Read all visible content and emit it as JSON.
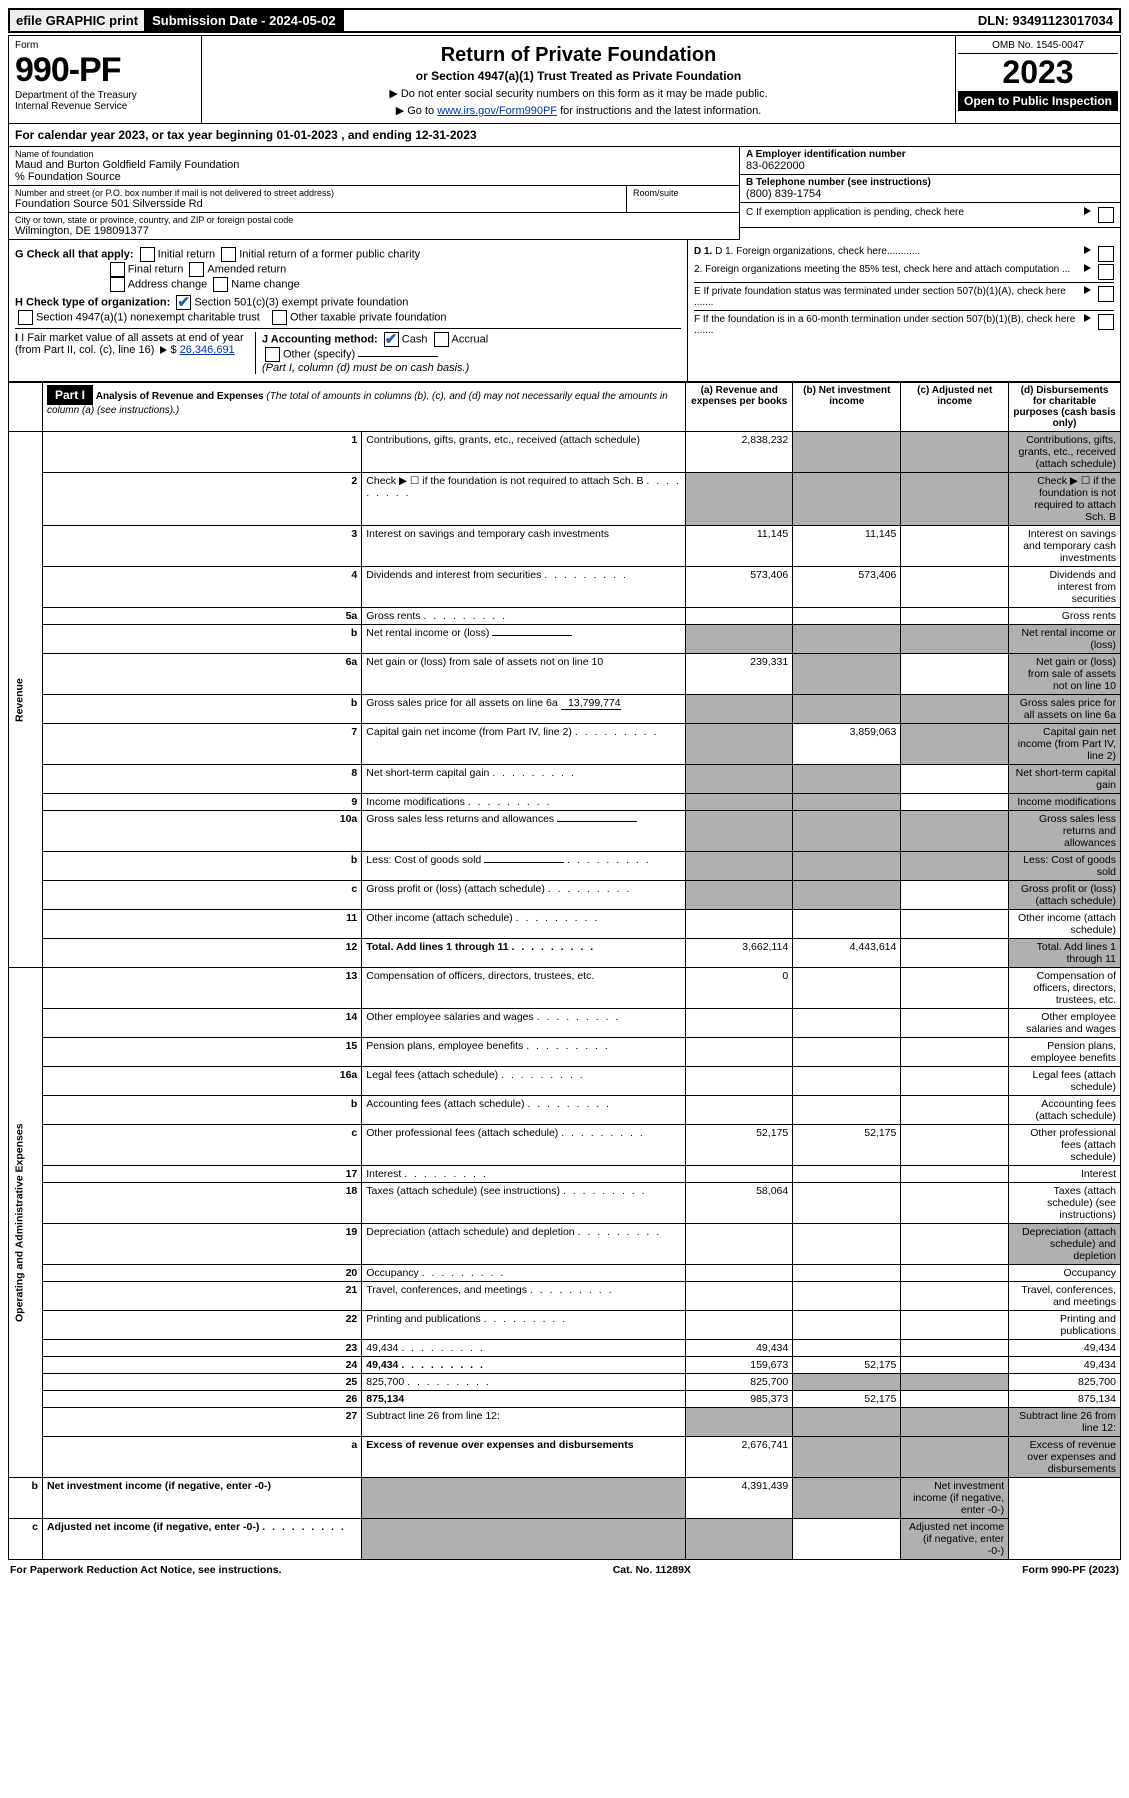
{
  "top": {
    "efile": "efile GRAPHIC print",
    "sub_date_label": "Submission Date - 2024-05-02",
    "dln": "DLN: 93491123017034"
  },
  "header": {
    "form_word": "Form",
    "form_number": "990-PF",
    "dept": "Department of the Treasury",
    "irs": "Internal Revenue Service",
    "title": "Return of Private Foundation",
    "subtitle": "or Section 4947(a)(1) Trust Treated as Private Foundation",
    "instr1": "▶ Do not enter social security numbers on this form as it may be made public.",
    "instr2_pre": "▶ Go to ",
    "instr2_link": "www.irs.gov/Form990PF",
    "instr2_post": " for instructions and the latest information.",
    "omb": "OMB No. 1545-0047",
    "year": "2023",
    "open": "Open to Public Inspection"
  },
  "calyear": {
    "text_pre": "For calendar year 2023, or tax year beginning ",
    "begin": "01-01-2023",
    "mid": " , and ending ",
    "end": "12-31-2023"
  },
  "entity": {
    "name_label": "Name of foundation",
    "name": "Maud and Burton Goldfield Family Foundation",
    "care_of": "% Foundation Source",
    "addr_label": "Number and street (or P.O. box number if mail is not delivered to street address)",
    "addr": "Foundation Source 501 Silversside Rd",
    "room_label": "Room/suite",
    "city_label": "City or town, state or province, country, and ZIP or foreign postal code",
    "city": "Wilmington, DE  198091377",
    "ein_label": "A Employer identification number",
    "ein": "83-0622000",
    "phone_label": "B Telephone number (see instructions)",
    "phone": "(800) 839-1754",
    "c_label": "C If exemption application is pending, check here"
  },
  "checks": {
    "g_label": "G Check all that apply:",
    "g_opts": [
      "Initial return",
      "Initial return of a former public charity",
      "Final return",
      "Amended return",
      "Address change",
      "Name change"
    ],
    "h_label": "H Check type of organization:",
    "h_opt1": "Section 501(c)(3) exempt private foundation",
    "h_opt2": "Section 4947(a)(1) nonexempt charitable trust",
    "h_opt3": "Other taxable private foundation",
    "i_label": "I Fair market value of all assets at end of year (from Part II, col. (c), line 16)",
    "i_val": "26,346,691",
    "j_label": "J Accounting method:",
    "j_cash": "Cash",
    "j_accrual": "Accrual",
    "j_other": "Other (specify)",
    "j_note": "(Part I, column (d) must be on cash basis.)",
    "d1": "D 1. Foreign organizations, check here............",
    "d2": "2. Foreign organizations meeting the 85% test, check here and attach computation ...",
    "e": "E  If private foundation status was terminated under section 507(b)(1)(A), check here .......",
    "f": "F  If the foundation is in a 60-month termination under section 507(b)(1)(B), check here .......",
    "arrow": "▶"
  },
  "part1": {
    "label": "Part I",
    "title": "Analysis of Revenue and Expenses",
    "title_note": "(The total of amounts in columns (b), (c), and (d) may not necessarily equal the amounts in column (a) (see instructions).)",
    "cols": {
      "a": "(a) Revenue and expenses per books",
      "b": "(b) Net investment income",
      "c": "(c) Adjusted net income",
      "d": "(d) Disbursements for charitable purposes (cash basis only)"
    }
  },
  "sections": {
    "revenue": "Revenue",
    "opadmin": "Operating and Administrative Expenses"
  },
  "rows": [
    {
      "n": "1",
      "d": "Contributions, gifts, grants, etc., received (attach schedule)",
      "a": "2,838,232",
      "b_sh": true,
      "c_sh": true,
      "d_sh": true
    },
    {
      "n": "2",
      "d": "Check ▶ ☐ if the foundation is not required to attach Sch. B",
      "dots": true,
      "a_sh": true,
      "b_sh": true,
      "c_sh": true,
      "d_sh": true
    },
    {
      "n": "3",
      "d": "Interest on savings and temporary cash investments",
      "a": "11,145",
      "b": "11,145"
    },
    {
      "n": "4",
      "d": "Dividends and interest from securities",
      "dots": true,
      "a": "573,406",
      "b": "573,406"
    },
    {
      "n": "5a",
      "d": "Gross rents",
      "dots": true
    },
    {
      "n": "b",
      "d": "Net rental income or (loss)",
      "a_sh": true,
      "b_sh": true,
      "c_sh": true,
      "d_sh": true,
      "inline": true
    },
    {
      "n": "6a",
      "d": "Net gain or (loss) from sale of assets not on line 10",
      "a": "239,331",
      "b_sh": true,
      "d_sh": true
    },
    {
      "n": "b",
      "d": "Gross sales price for all assets on line 6a",
      "inline_val": "13,799,774",
      "a_sh": true,
      "b_sh": true,
      "c_sh": true,
      "d_sh": true
    },
    {
      "n": "7",
      "d": "Capital gain net income (from Part IV, line 2)",
      "dots": true,
      "a_sh": true,
      "b": "3,859,063",
      "c_sh": true,
      "d_sh": true
    },
    {
      "n": "8",
      "d": "Net short-term capital gain",
      "dots": true,
      "a_sh": true,
      "b_sh": true,
      "d_sh": true
    },
    {
      "n": "9",
      "d": "Income modifications",
      "dots": true,
      "a_sh": true,
      "b_sh": true,
      "d_sh": true
    },
    {
      "n": "10a",
      "d": "Gross sales less returns and allowances",
      "inline": true,
      "a_sh": true,
      "b_sh": true,
      "c_sh": true,
      "d_sh": true
    },
    {
      "n": "b",
      "d": "Less: Cost of goods sold",
      "dots": true,
      "inline": true,
      "a_sh": true,
      "b_sh": true,
      "c_sh": true,
      "d_sh": true
    },
    {
      "n": "c",
      "d": "Gross profit or (loss) (attach schedule)",
      "dots": true,
      "a_sh": true,
      "b_sh": true,
      "d_sh": true
    },
    {
      "n": "11",
      "d": "Other income (attach schedule)",
      "dots": true
    },
    {
      "n": "12",
      "d": "Total. Add lines 1 through 11",
      "dots": true,
      "bold": true,
      "a": "3,662,114",
      "b": "4,443,614",
      "d_sh": true
    },
    {
      "n": "13",
      "d": "Compensation of officers, directors, trustees, etc.",
      "a": "0"
    },
    {
      "n": "14",
      "d": "Other employee salaries and wages",
      "dots": true
    },
    {
      "n": "15",
      "d": "Pension plans, employee benefits",
      "dots": true
    },
    {
      "n": "16a",
      "d": "Legal fees (attach schedule)",
      "dots": true
    },
    {
      "n": "b",
      "d": "Accounting fees (attach schedule)",
      "dots": true
    },
    {
      "n": "c",
      "d": "Other professional fees (attach schedule)",
      "dots": true,
      "a": "52,175",
      "b": "52,175"
    },
    {
      "n": "17",
      "d": "Interest",
      "dots": true
    },
    {
      "n": "18",
      "d": "Taxes (attach schedule) (see instructions)",
      "dots": true,
      "a": "58,064"
    },
    {
      "n": "19",
      "d": "Depreciation (attach schedule) and depletion",
      "dots": true,
      "d_sh": true
    },
    {
      "n": "20",
      "d": "Occupancy",
      "dots": true
    },
    {
      "n": "21",
      "d": "Travel, conferences, and meetings",
      "dots": true
    },
    {
      "n": "22",
      "d": "Printing and publications",
      "dots": true
    },
    {
      "n": "23",
      "d": "49,434",
      "dots": true,
      "a": "49,434"
    },
    {
      "n": "24",
      "d": "49,434",
      "dots": true,
      "bold": true,
      "a": "159,673",
      "b": "52,175"
    },
    {
      "n": "25",
      "d": "825,700",
      "dots": true,
      "a": "825,700",
      "b_sh": true,
      "c_sh": true
    },
    {
      "n": "26",
      "d": "875,134",
      "bold": true,
      "a": "985,373",
      "b": "52,175"
    },
    {
      "n": "27",
      "d": "Subtract line 26 from line 12:",
      "a_sh": true,
      "b_sh": true,
      "c_sh": true,
      "d_sh": true
    },
    {
      "n": "a",
      "d": "Excess of revenue over expenses and disbursements",
      "bold": true,
      "a": "2,676,741",
      "b_sh": true,
      "c_sh": true,
      "d_sh": true
    },
    {
      "n": "b",
      "d": "Net investment income (if negative, enter -0-)",
      "bold": true,
      "a_sh": true,
      "b": "4,391,439",
      "c_sh": true,
      "d_sh": true
    },
    {
      "n": "c",
      "d": "Adjusted net income (if negative, enter -0-)",
      "dots": true,
      "bold": true,
      "a_sh": true,
      "b_sh": true,
      "d_sh": true
    }
  ],
  "footer": {
    "left": "For Paperwork Reduction Act Notice, see instructions.",
    "mid": "Cat. No. 11289X",
    "right": "Form 990-PF (2023)"
  }
}
